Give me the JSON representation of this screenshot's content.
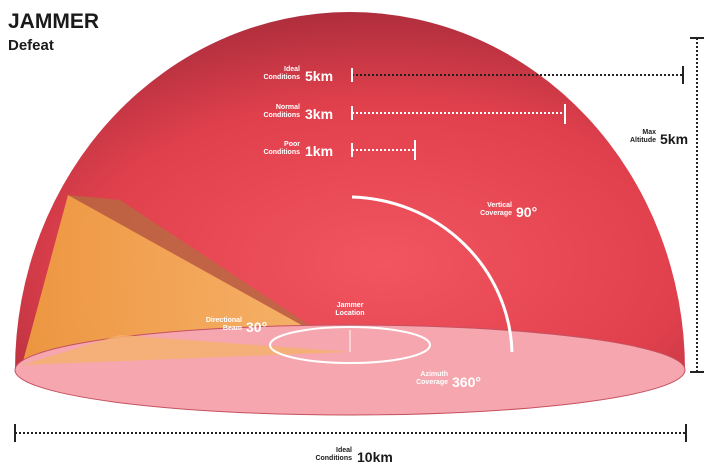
{
  "header": {
    "title": "JAMMER",
    "subtitle": "Defeat"
  },
  "ranges": [
    {
      "label": [
        "Ideal",
        "Conditions"
      ],
      "value": "5km"
    },
    {
      "label": [
        "Normal",
        "Conditions"
      ],
      "value": "3km"
    },
    {
      "label": [
        "Poor",
        "Conditions"
      ],
      "value": "1km"
    }
  ],
  "max_altitude": {
    "label": [
      "Max",
      "Altitude"
    ],
    "value": "5km"
  },
  "vertical_coverage": {
    "label": [
      "Vertical",
      "Coverage"
    ],
    "value": "90°"
  },
  "directional_beam": {
    "label": [
      "Directional",
      "Beam"
    ],
    "value": "30°"
  },
  "jammer_location": {
    "label": [
      "Jammer",
      "Location"
    ]
  },
  "azimuth_coverage": {
    "label": [
      "Azimuth",
      "Coverage"
    ],
    "value": "360°"
  },
  "diameter": {
    "label": [
      "Ideal",
      "Conditions"
    ],
    "value": "10km"
  }
}
